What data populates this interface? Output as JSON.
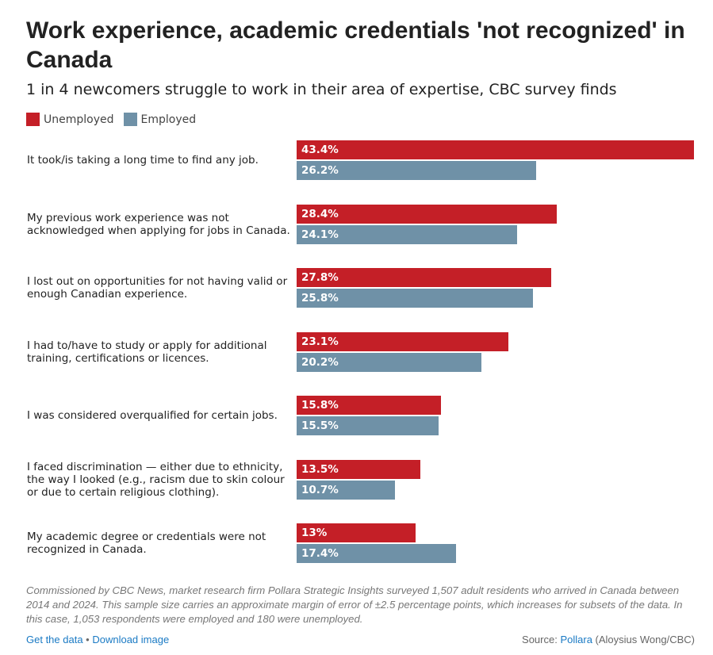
{
  "header": {
    "title": "Work experience, academic credentials 'not recognized' in Canada",
    "subtitle": "1 in 4 newcomers struggle to work in their area of expertise, CBC survey finds"
  },
  "colors": {
    "unemployed": "#c41f27",
    "employed": "#6f91a7"
  },
  "chart_data": {
    "type": "bar",
    "orientation": "horizontal",
    "legend": [
      "Unemployed",
      "Employed"
    ],
    "legend_placement": "top-left",
    "categories": [
      "It took/is taking a long time to find any job.",
      "My previous work experience was not acknowledged when applying for jobs in Canada.",
      "I lost out on opportunities for not having valid or enough Canadian experience.",
      "I had to/have to study or apply for additional training, certifications or licences.",
      "I was considered overqualified for certain jobs.",
      "I faced discrimination — either due to ethnicity, the way I looked (e.g., racism due to skin colour or due to certain religious clothing).",
      "My academic degree or credentials were not recognized in Canada."
    ],
    "series": [
      {
        "name": "Unemployed",
        "values": [
          43.4,
          28.4,
          27.8,
          23.1,
          15.8,
          13.5,
          13
        ],
        "labels": [
          "43.4%",
          "28.4%",
          "27.8%",
          "23.1%",
          "15.8%",
          "13.5%",
          "13%"
        ]
      },
      {
        "name": "Employed",
        "values": [
          26.2,
          24.1,
          25.8,
          20.2,
          15.5,
          10.7,
          17.4
        ],
        "labels": [
          "26.2%",
          "24.1%",
          "25.8%",
          "20.2%",
          "15.5%",
          "10.7%",
          "17.4%"
        ]
      }
    ],
    "xlim": [
      0,
      43.4
    ]
  },
  "notes": "Commissioned by CBC News, market research firm Pollara Strategic Insights surveyed 1,507 adult residents who arrived in Canada between 2014 and 2024. This sample size carries an approximate margin of error of ±2.5 percentage points, which increases for subsets of the data. In this case, 1,053 respondents were employed and 180 were unemployed.",
  "footer": {
    "get_data": "Get the data",
    "separator": " • ",
    "download": "Download image",
    "source_prefix": "Source: ",
    "source_link": "Pollara",
    "source_suffix": " (Aloysius Wong/CBC)"
  }
}
